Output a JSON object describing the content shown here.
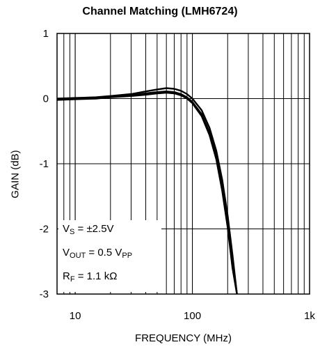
{
  "chart_data": {
    "type": "line",
    "title": "Channel Matching (LMH6724)",
    "xlabel": "FREQUENCY (MHz)",
    "ylabel": "GAIN (dB)",
    "xscale": "log",
    "xlim": [
      7,
      1000
    ],
    "ylim": [
      -3,
      1
    ],
    "grid": true,
    "xticks": [
      {
        "value": 10,
        "label": "10"
      },
      {
        "value": 100,
        "label": "100"
      },
      {
        "value": 1000,
        "label": "1k"
      }
    ],
    "yticks": [
      {
        "value": 1,
        "label": "1"
      },
      {
        "value": 0,
        "label": "0"
      },
      {
        "value": -1,
        "label": "-1"
      },
      {
        "value": -2,
        "label": "-2"
      },
      {
        "value": -3,
        "label": "-3"
      }
    ],
    "series": [
      {
        "x": [
          7,
          10,
          15,
          20,
          30,
          40,
          50,
          60,
          70,
          80,
          90,
          100,
          120,
          140,
          160,
          180,
          200,
          220,
          240
        ],
        "y": [
          0.0,
          0.01,
          0.02,
          0.04,
          0.07,
          0.11,
          0.14,
          0.16,
          0.15,
          0.12,
          0.07,
          0.0,
          -0.18,
          -0.45,
          -0.8,
          -1.25,
          -1.8,
          -2.4,
          -3.0
        ]
      },
      {
        "x": [
          7,
          10,
          15,
          20,
          30,
          40,
          50,
          60,
          70,
          80,
          90,
          100,
          120,
          140,
          160,
          180,
          200,
          220,
          240
        ],
        "y": [
          -0.01,
          0.0,
          0.01,
          0.03,
          0.05,
          0.08,
          0.1,
          0.11,
          0.1,
          0.07,
          0.02,
          -0.05,
          -0.24,
          -0.52,
          -0.88,
          -1.35,
          -1.9,
          -2.5,
          -3.0
        ]
      },
      {
        "x": [
          7,
          10,
          15,
          20,
          30,
          40,
          50,
          60,
          70,
          80,
          90,
          100,
          120,
          140,
          160,
          180,
          200,
          220,
          240
        ],
        "y": [
          -0.02,
          -0.01,
          0.0,
          0.02,
          0.04,
          0.06,
          0.08,
          0.09,
          0.08,
          0.05,
          0.0,
          -0.07,
          -0.27,
          -0.56,
          -0.93,
          -1.42,
          -1.98,
          -2.6,
          -3.0
        ]
      }
    ],
    "annotations": [
      {
        "main": "V",
        "sub": "S",
        "rest": " = ±2.5V"
      },
      {
        "main": "V",
        "sub": "OUT",
        "rest": " = 0.5 V",
        "sub2": "PP"
      },
      {
        "main": "R",
        "sub": "F",
        "rest": " = 1.1 kΩ"
      }
    ]
  }
}
